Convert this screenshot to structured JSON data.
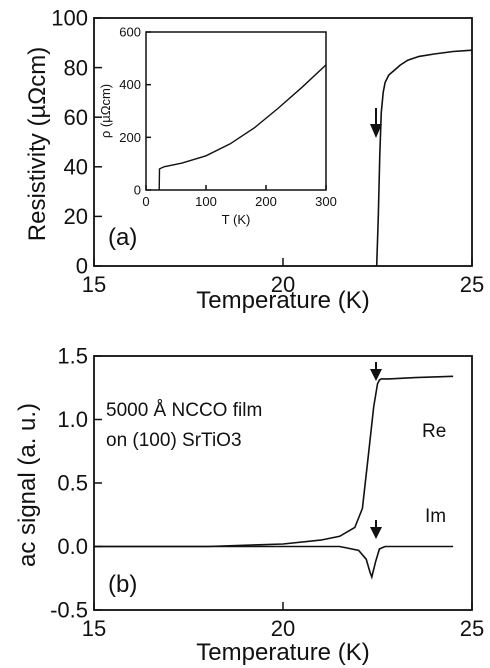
{
  "chart_data": [
    {
      "type": "line",
      "panel_label": "(a)",
      "xlabel": "Temperature (K)",
      "ylabel": "Resistivity (µΩcm)",
      "xlim": [
        15,
        25
      ],
      "ylim": [
        0,
        100
      ],
      "xticks": [
        15,
        20,
        25
      ],
      "yticks": [
        0,
        20,
        40,
        60,
        80,
        100
      ],
      "grid": false,
      "annotations": [
        "down arrow at transition (~22.6 K)"
      ],
      "series": [
        {
          "x": [
            22.48,
            22.52,
            22.56,
            22.6,
            22.65,
            22.7,
            22.8,
            22.95,
            23.1,
            23.3,
            23.6,
            24.0,
            24.5,
            25.0
          ],
          "y": [
            0,
            20,
            45,
            62,
            70,
            74,
            77,
            79,
            81,
            83,
            84.5,
            85.5,
            86.5,
            87
          ]
        }
      ],
      "inset": {
        "type": "line",
        "xlabel": "T (K)",
        "ylabel": "ρ (µΩcm)",
        "xlim": [
          0,
          300
        ],
        "ylim": [
          0,
          600
        ],
        "xticks": [
          0,
          100,
          200,
          300
        ],
        "yticks": [
          0,
          200,
          400,
          600
        ],
        "series": [
          {
            "x": [
              22,
              22.5,
              30,
              60,
              100,
              140,
              180,
              220,
              260,
              300
            ],
            "y": [
              0,
              80,
              88,
              102,
              130,
              175,
              235,
              310,
              390,
              475
            ]
          }
        ]
      }
    },
    {
      "type": "line",
      "panel_label": "(b)",
      "xlabel": "Temperature (K)",
      "ylabel": "ac signal (a. u.)",
      "xlim": [
        15,
        25
      ],
      "ylim": [
        -0.5,
        1.5
      ],
      "xticks": [
        15,
        20,
        25
      ],
      "yticks": [
        -0.5,
        0.0,
        0.5,
        1.0,
        1.5
      ],
      "grid": false,
      "text": [
        "5000 Å NCCO film",
        "on (100) SrTiO3"
      ],
      "annotations": [
        "down arrow above Re transition (~22.6 K)",
        "down arrow above Im dip (~22.6 K)"
      ],
      "series": [
        {
          "name": "Re",
          "x": [
            15,
            18,
            20,
            21,
            21.5,
            21.9,
            22.1,
            22.25,
            22.4,
            22.5,
            22.55,
            22.6,
            22.8,
            23.5,
            24.5
          ],
          "y": [
            0.0,
            0.0,
            0.02,
            0.05,
            0.08,
            0.15,
            0.3,
            0.7,
            1.1,
            1.28,
            1.31,
            1.32,
            1.32,
            1.33,
            1.34
          ]
        },
        {
          "name": "Im",
          "x": [
            15,
            20,
            21.5,
            22.0,
            22.2,
            22.3,
            22.35,
            22.45,
            22.55,
            22.7,
            23.5,
            24.5
          ],
          "y": [
            0.0,
            0.0,
            0.0,
            -0.03,
            -0.1,
            -0.2,
            -0.24,
            -0.12,
            -0.02,
            0.0,
            0.0,
            0.0
          ]
        }
      ]
    }
  ]
}
